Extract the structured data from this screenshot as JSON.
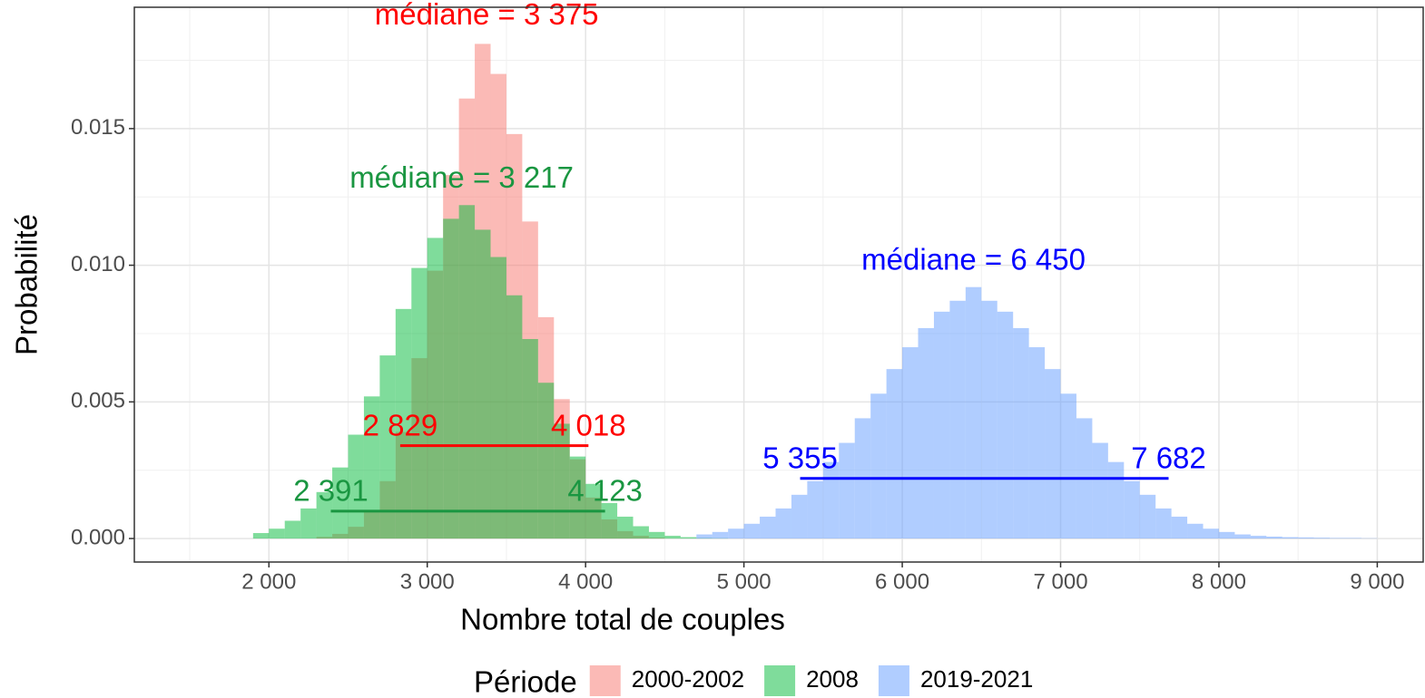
{
  "chart_data": {
    "type": "histogram",
    "x_label": "Nombre total de couples",
    "y_label": "Probabilité",
    "legend_title": "Période",
    "legend_position": "bottom",
    "grid": true,
    "xlim": [
      1150,
      9290
    ],
    "ylim": [
      -0.00086,
      0.01944
    ],
    "xticks": [
      {
        "value": 2000,
        "label": "2 000"
      },
      {
        "value": 3000,
        "label": "3 000"
      },
      {
        "value": 4000,
        "label": "4 000"
      },
      {
        "value": 5000,
        "label": "5 000"
      },
      {
        "value": 6000,
        "label": "6 000"
      },
      {
        "value": 7000,
        "label": "7 000"
      },
      {
        "value": 8000,
        "label": "8 000"
      },
      {
        "value": 9000,
        "label": "9 000"
      }
    ],
    "yticks": [
      {
        "value": 0,
        "label": "0.000"
      },
      {
        "value": 0.005,
        "label": "0.005"
      },
      {
        "value": 0.01,
        "label": "0.010"
      },
      {
        "value": 0.015,
        "label": "0.015"
      }
    ],
    "series": [
      {
        "name": "2000-2002",
        "color": "#F8766D",
        "label_color": "#ff0000",
        "bins": [
          2300,
          2400,
          2500,
          2600,
          2700,
          2800,
          2900,
          3000,
          3100,
          3200,
          3300,
          3400,
          3500,
          3600,
          3700,
          3800,
          3900,
          4000,
          4100,
          4200,
          4300,
          4400,
          4500
        ],
        "values": [
          6e-05,
          0.00017,
          0.00043,
          0.001,
          0.0021,
          0.0039,
          0.0066,
          0.0098,
          0.0133,
          0.0161,
          0.0181,
          0.017,
          0.0148,
          0.0116,
          0.0081,
          0.0051,
          0.0029,
          0.0015,
          0.0007,
          0.00027,
          0.0001,
          3e-05
        ],
        "median": 3375,
        "median_label": "médiane = 3 375",
        "interval": [
          2829,
          4018
        ],
        "interval_labels": [
          "2 829",
          "4 018"
        ],
        "interval_y": 0.0034
      },
      {
        "name": "2008",
        "color": "#00BA38",
        "label_color": "#1a9641",
        "bins": [
          1900,
          2000,
          2100,
          2200,
          2300,
          2400,
          2500,
          2600,
          2700,
          2800,
          2900,
          3000,
          3100,
          3200,
          3300,
          3400,
          3500,
          3600,
          3700,
          3800,
          3900,
          4000,
          4100,
          4200,
          4300,
          4400,
          4500,
          4600,
          4700,
          4800,
          4900
        ],
        "values": [
          0.0002,
          0.00036,
          0.00065,
          0.0011,
          0.0017,
          0.0026,
          0.0038,
          0.0052,
          0.0067,
          0.0084,
          0.0099,
          0.011,
          0.0117,
          0.0122,
          0.0113,
          0.0103,
          0.0089,
          0.0073,
          0.0057,
          0.0042,
          0.003,
          0.002,
          0.0013,
          0.0008,
          0.00045,
          0.00024,
          0.0001,
          5e-05,
          2e-05,
          1e-05
        ],
        "median": 3217,
        "median_label": "médiane = 3 217",
        "interval": [
          2391,
          4123
        ],
        "interval_labels": [
          "2 391",
          "4 123"
        ],
        "interval_y": 0.001
      },
      {
        "name": "2019-2021",
        "color": "#619CFF",
        "label_color": "#0000ff",
        "bins": [
          4700,
          4800,
          4900,
          5000,
          5100,
          5200,
          5300,
          5400,
          5500,
          5600,
          5700,
          5800,
          5900,
          6000,
          6100,
          6200,
          6300,
          6400,
          6500,
          6600,
          6700,
          6800,
          6900,
          7000,
          7100,
          7200,
          7300,
          7400,
          7500,
          7600,
          7700,
          7800,
          7900,
          8000,
          8100,
          8200,
          8300,
          8400,
          8500,
          8600,
          8700,
          8800,
          8900,
          9000
        ],
        "values": [
          0.00015,
          0.00024,
          0.00036,
          0.00054,
          0.0008,
          0.0011,
          0.0016,
          0.0021,
          0.0028,
          0.0035,
          0.0044,
          0.0053,
          0.0062,
          0.007,
          0.0077,
          0.0083,
          0.0087,
          0.0092,
          0.0087,
          0.0083,
          0.0077,
          0.007,
          0.0062,
          0.0053,
          0.0044,
          0.0035,
          0.0028,
          0.0021,
          0.0016,
          0.0011,
          0.0008,
          0.00054,
          0.00036,
          0.00024,
          0.00015,
          0.0001,
          7e-05,
          5e-05,
          4e-05,
          3e-05,
          2e-05,
          2e-05,
          1e-05
        ],
        "median": 6450,
        "median_label": "médiane = 6 450",
        "interval": [
          5355,
          7682
        ],
        "interval_labels": [
          "5 355",
          "7 682"
        ],
        "interval_y": 0.0022
      }
    ]
  }
}
